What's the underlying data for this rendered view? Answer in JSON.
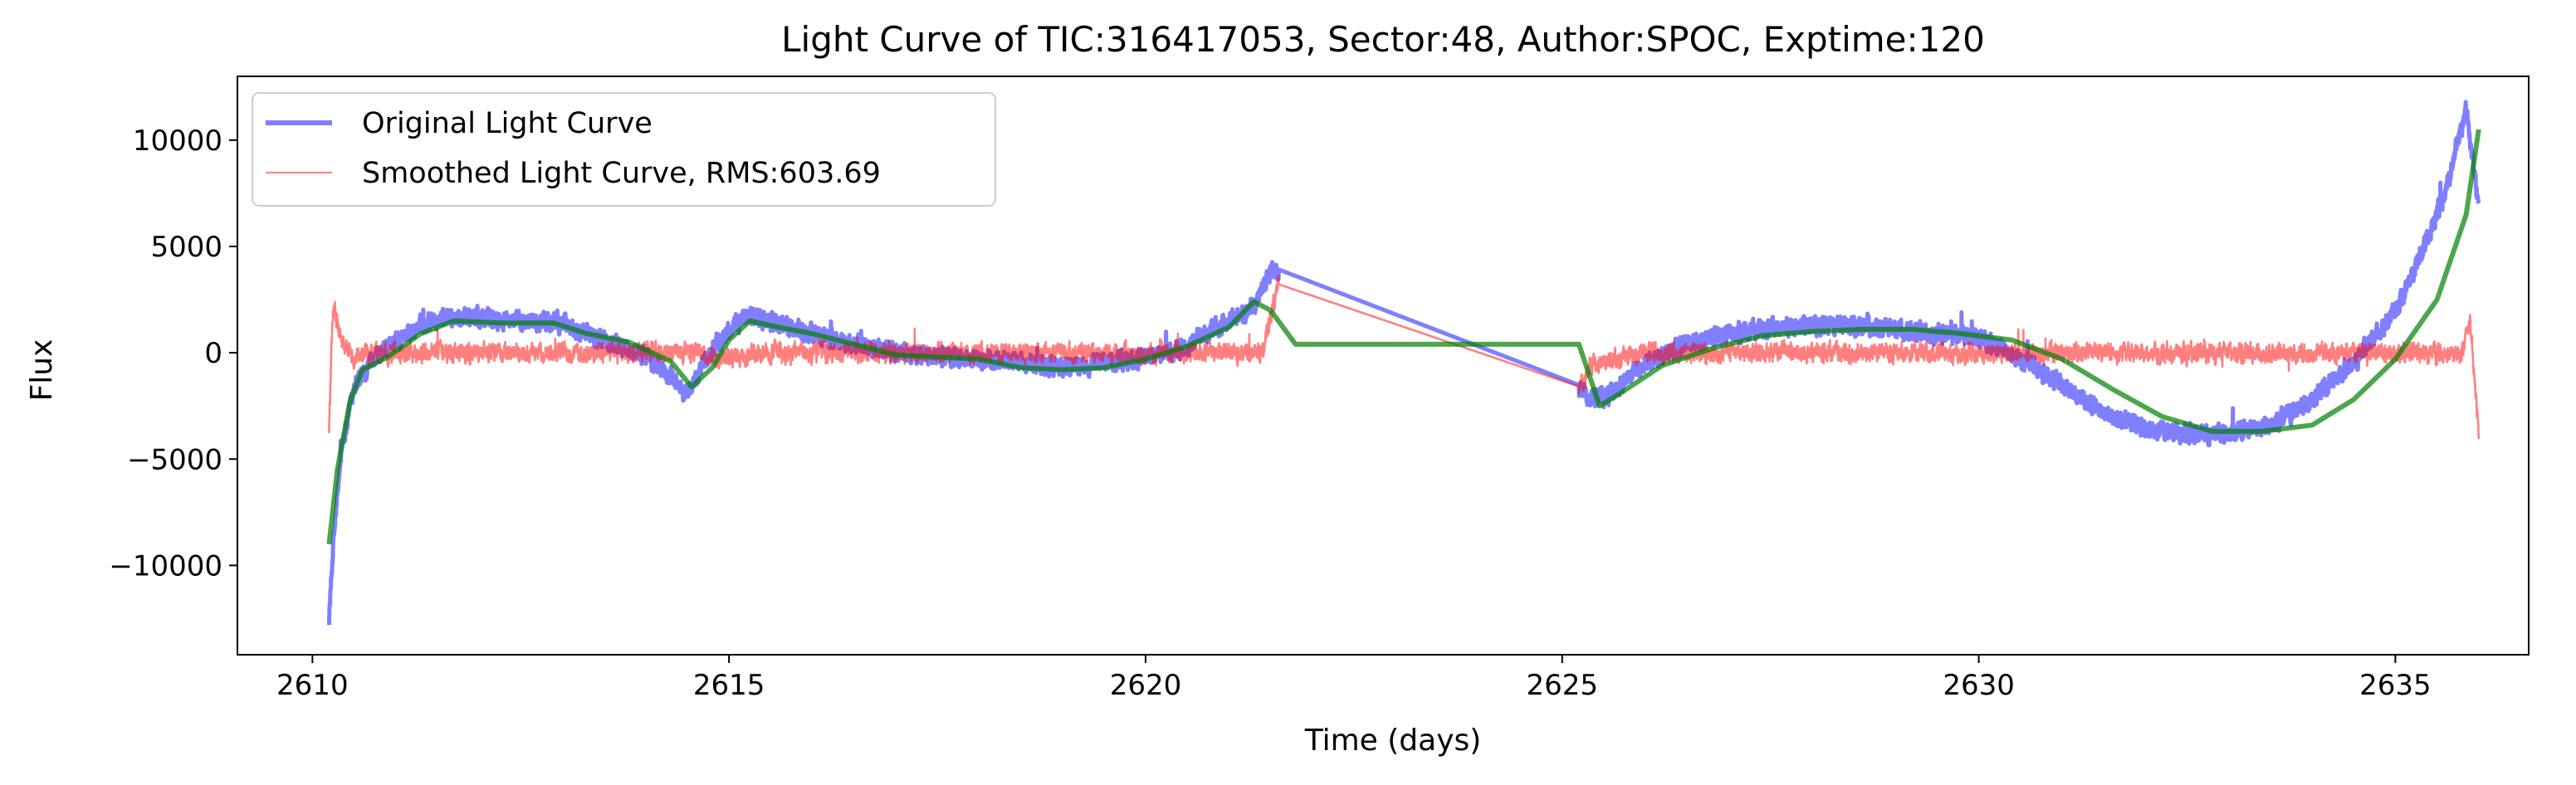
{
  "chart_data": {
    "type": "line",
    "title": "Light Curve of TIC:316417053, Sector:48, Author:SPOC, Exptime:120",
    "xlabel": "Time (days)",
    "ylabel": "Flux",
    "xlim": [
      2609.1,
      2636.6
    ],
    "ylim": [
      -14200,
      13000
    ],
    "x_ticks": [
      2610,
      2615,
      2620,
      2625,
      2630,
      2635
    ],
    "x_tick_labels": [
      "2610",
      "2615",
      "2620",
      "2625",
      "2630",
      "2635"
    ],
    "y_ticks": [
      -10000,
      -5000,
      0,
      5000,
      10000
    ],
    "y_tick_labels": [
      "−10000",
      "−5000",
      "0",
      "5000",
      "10000"
    ],
    "grid": false,
    "legend_position": "top-left",
    "gap": [
      2621.6,
      2625.2
    ],
    "series": [
      {
        "name": "Original Light Curve",
        "color": "#0000ff",
        "alpha": 0.5,
        "noise_amplitude": 700,
        "x": [
          2610.2,
          2610.25,
          2610.35,
          2610.5,
          2610.7,
          2611.0,
          2611.5,
          2612.0,
          2612.5,
          2613.0,
          2613.5,
          2614.0,
          2614.5,
          2614.8,
          2615.2,
          2615.7,
          2616.5,
          2617.5,
          2618.5,
          2619.0,
          2619.5,
          2620.0,
          2620.5,
          2621.0,
          2621.3,
          2621.5,
          2621.6,
          2625.2,
          2625.35,
          2625.6,
          2626.0,
          2626.5,
          2627.0,
          2627.5,
          2628.0,
          2628.5,
          2629.0,
          2629.5,
          2630.0,
          2630.5,
          2631.0,
          2631.5,
          2632.0,
          2632.5,
          2633.0,
          2633.5,
          2634.0,
          2634.5,
          2635.0,
          2635.3,
          2635.6,
          2635.85,
          2636.0
        ],
        "y": [
          -12500,
          -9000,
          -4500,
          -1500,
          -500,
          600,
          1700,
          1600,
          1500,
          1400,
          600,
          -100,
          -1900,
          200,
          1800,
          1200,
          400,
          -200,
          -400,
          -700,
          -500,
          -300,
          300,
          1500,
          2200,
          3800,
          3600,
          -1700,
          -2200,
          -1900,
          -500,
          400,
          900,
          1200,
          1300,
          1300,
          1200,
          900,
          700,
          -300,
          -1500,
          -2800,
          -3600,
          -3800,
          -3800,
          -3400,
          -2200,
          -500,
          2000,
          4500,
          7500,
          11500,
          7000
        ]
      },
      {
        "name": "Smoothed Light Curve, RMS:603.69",
        "color": "#ff0000",
        "alpha": 0.5,
        "noise_amplitude": 750,
        "x": [
          2610.2,
          2610.25,
          2610.35,
          2610.5,
          2611.0,
          2612.0,
          2613.0,
          2614.0,
          2614.6,
          2614.9,
          2615.5,
          2617.0,
          2618.5,
          2620.0,
          2621.0,
          2621.4,
          2621.6,
          2625.2,
          2625.35,
          2626.0,
          2628.0,
          2630.0,
          2632.0,
          2634.0,
          2635.0,
          2635.5,
          2635.8,
          2635.9,
          2636.0
        ],
        "y": [
          -3500,
          2400,
          500,
          -200,
          0,
          0,
          0,
          0,
          100,
          -300,
          0,
          0,
          0,
          0,
          0,
          0,
          3400,
          -1700,
          -600,
          0,
          0,
          0,
          0,
          0,
          0,
          0,
          0,
          1500,
          -3800
        ]
      },
      {
        "name": "",
        "color": "#008000",
        "alpha": 0.7,
        "noise_amplitude": 0,
        "x": [
          2610.2,
          2610.3,
          2610.45,
          2610.6,
          2610.9,
          2611.3,
          2611.7,
          2612.3,
          2612.9,
          2613.3,
          2613.8,
          2614.3,
          2614.55,
          2614.8,
          2615.0,
          2615.25,
          2615.6,
          2616.0,
          2616.5,
          2617.0,
          2617.5,
          2618.0,
          2618.5,
          2619.0,
          2619.5,
          2620.0,
          2620.5,
          2621.0,
          2621.3,
          2621.5,
          2621.8,
          2625.2,
          2625.45,
          2625.7,
          2626.2,
          2626.8,
          2627.4,
          2628.0,
          2628.6,
          2629.2,
          2629.8,
          2630.4,
          2631.0,
          2631.6,
          2632.2,
          2632.8,
          2633.4,
          2634.0,
          2634.5,
          2635.0,
          2635.5,
          2635.85,
          2636.0
        ],
        "y": [
          -9000,
          -5500,
          -2300,
          -800,
          -200,
          900,
          1500,
          1400,
          1400,
          900,
          500,
          -400,
          -1600,
          -700,
          600,
          1500,
          1200,
          900,
          400,
          -100,
          -200,
          -300,
          -700,
          -800,
          -700,
          -300,
          300,
          1200,
          2400,
          2000,
          400,
          400,
          -2500,
          -1900,
          -600,
          200,
          800,
          1000,
          1100,
          1100,
          900,
          600,
          -300,
          -1700,
          -3000,
          -3700,
          -3700,
          -3400,
          -2200,
          -300,
          2500,
          6500,
          10500
        ]
      }
    ]
  }
}
